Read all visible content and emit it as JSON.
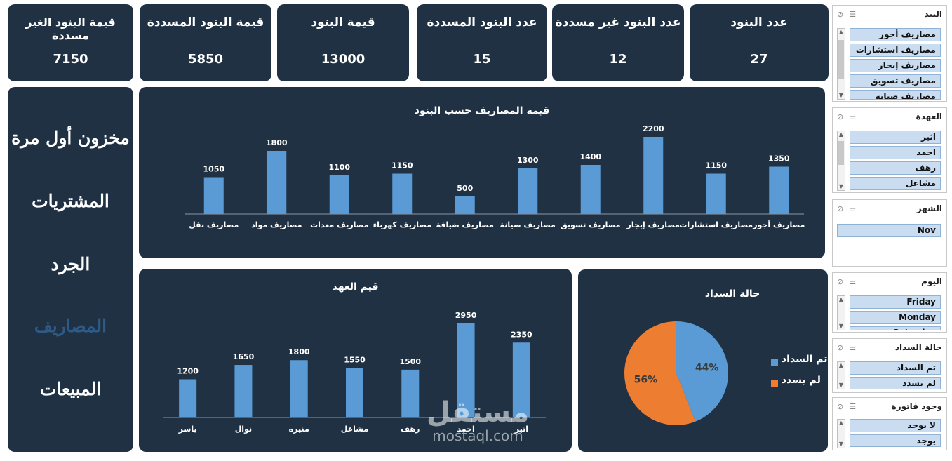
{
  "kpis": [
    {
      "label": "عدد البنود",
      "value": "27"
    },
    {
      "label": "عدد البنود غير مسددة",
      "value": "12"
    },
    {
      "label": "عدد البنود المسددة",
      "value": "15"
    },
    {
      "label": "قيمة البنود",
      "value": "13000"
    },
    {
      "label": "قيمة البنود المسددة",
      "value": "5850"
    },
    {
      "label": "قيمة البنود الغير مسددة",
      "value": "7150"
    }
  ],
  "nav": {
    "items": [
      "مخزون أول مرة",
      "المشتريات",
      "الجرد",
      "المصاريف",
      "المبيعات"
    ],
    "active": "المصاريف"
  },
  "colors": {
    "card": "#1f3143",
    "bar": "#5b9bd5",
    "pie_orange": "#ed7d31",
    "active_nav": "#2e5a85"
  },
  "slicers": [
    {
      "title": "البند",
      "items": [
        "مصاريف أجور",
        "مصاريف استشارات",
        "مصاريف إيجار",
        "مصاريف تسويق",
        "مصاريف صيانة"
      ],
      "icons": [
        "multi-select-icon",
        "clear-filter-icon"
      ]
    },
    {
      "title": "العهدة",
      "items": [
        "اثير",
        "احمد",
        "رهف",
        "مشاعل"
      ],
      "icons": [
        "multi-select-icon",
        "clear-filter-icon"
      ]
    },
    {
      "title": "الشهر",
      "items": [
        "Nov"
      ],
      "icons": [
        "multi-select-icon",
        "clear-filter-icon"
      ]
    },
    {
      "title": "اليوم",
      "items": [
        "Friday",
        "Monday",
        "Saturday"
      ],
      "icons": [
        "multi-select-icon",
        "clear-filter-icon"
      ]
    },
    {
      "title": "حالة السداد",
      "items": [
        "تم السداد",
        "لم يسدد"
      ],
      "icons": [
        "multi-select-icon",
        "clear-filter-icon"
      ]
    },
    {
      "title": "وجود فاتورة",
      "items": [
        "لا يوجد",
        "يوجد"
      ],
      "icons": [
        "multi-select-icon",
        "clear-filter-icon"
      ]
    }
  ],
  "watermark": {
    "arabic": "مستقل",
    "latin": "mostaql.com"
  },
  "chart_data": [
    {
      "type": "bar",
      "title": "قيمة المصاريف حسب البنود",
      "categories": [
        "مصاريف أجور",
        "مصاريف استشارات",
        "مصاريف إيجار",
        "مصاريف تسويق",
        "مصاريف صيانة",
        "مصاريف ضيافة",
        "مصاريف كهرباء",
        "مصاريف معدات",
        "مصاريف مواد",
        "مصاريف نقل"
      ],
      "values": [
        1350,
        1150,
        2200,
        1400,
        1300,
        500,
        1150,
        1100,
        1800,
        1050
      ],
      "ylim": [
        0,
        2200
      ],
      "grid": false,
      "data_labels": true
    },
    {
      "type": "bar",
      "title": "قيم العهد",
      "categories": [
        "اثير",
        "احمد",
        "رهف",
        "مشاعل",
        "منيره",
        "نوال",
        "ياسر"
      ],
      "values": [
        2350,
        2950,
        1500,
        1550,
        1800,
        1650,
        1200
      ],
      "ylim": [
        0,
        2950
      ],
      "grid": false,
      "data_labels": true
    },
    {
      "type": "pie",
      "title": "حالة السداد",
      "categories": [
        "تم السداد",
        "لم يسدد"
      ],
      "values": [
        44,
        56
      ],
      "labels": [
        "44%",
        "56%"
      ],
      "colors": [
        "#5b9bd5",
        "#ed7d31"
      ],
      "legend": "right"
    }
  ]
}
